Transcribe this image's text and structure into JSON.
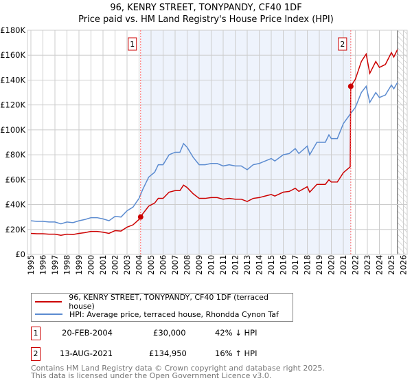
{
  "title": "96, KENRY STREET, TONYPANDY, CF40 1DF",
  "subtitle": "Price paid vs. HM Land Registry's House Price Index (HPI)",
  "chart_data": {
    "type": "line",
    "ylim": [
      0,
      180000
    ],
    "xlim": [
      1995,
      2026
    ],
    "yticks": [
      0,
      20000,
      40000,
      60000,
      80000,
      100000,
      120000,
      140000,
      160000,
      180000
    ],
    "ytick_labels": [
      "£0",
      "£20K",
      "£40K",
      "£60K",
      "£80K",
      "£100K",
      "£120K",
      "£140K",
      "£160K",
      "£180K"
    ],
    "xticks": [
      1995,
      1996,
      1997,
      1998,
      1999,
      2000,
      2001,
      2002,
      2003,
      2004,
      2005,
      2006,
      2007,
      2008,
      2009,
      2010,
      2011,
      2012,
      2013,
      2014,
      2015,
      2016,
      2017,
      2018,
      2019,
      2020,
      2021,
      2022,
      2023,
      2024,
      2025,
      2026
    ],
    "grid": true,
    "colors": {
      "property": "#cc0000",
      "hpi": "#5b8bd0",
      "shade": "#eef3fc"
    },
    "hpi_series": {
      "name": "HPI: Average price, terraced house, Rhondda Cynon Taf",
      "x": [
        1995,
        1995.5,
        1996,
        1996.5,
        1997,
        1997.5,
        1998,
        1998.5,
        1999,
        1999.5,
        2000,
        2000.5,
        2001,
        2001.5,
        2002,
        2002.5,
        2003,
        2003.5,
        2004,
        2004.3,
        2004.8,
        2005.3,
        2005.6,
        2006,
        2006.5,
        2007,
        2007.4,
        2007.7,
        2008,
        2008.5,
        2009,
        2009.5,
        2010,
        2010.5,
        2011,
        2011.5,
        2012,
        2012.5,
        2013,
        2013.5,
        2014,
        2014.5,
        2015,
        2015.3,
        2016,
        2016.5,
        2017,
        2017.3,
        2018,
        2018.2,
        2018.8,
        2019.5,
        2019.8,
        2020,
        2020.5,
        2021,
        2021.6,
        2022,
        2022.5,
        2022.9,
        2023.2,
        2023.7,
        2024,
        2024.5,
        2025,
        2025.2,
        2025.5
      ],
      "y": [
        27000,
        26500,
        26500,
        26000,
        26000,
        24500,
        26000,
        25500,
        27000,
        28000,
        29500,
        29500,
        28500,
        27000,
        30500,
        30000,
        35000,
        38000,
        45000,
        52000,
        62000,
        66000,
        72000,
        72000,
        80000,
        82000,
        82000,
        89000,
        86000,
        78000,
        72000,
        72000,
        73000,
        73000,
        71000,
        72000,
        71000,
        71000,
        68000,
        72000,
        73000,
        75000,
        77000,
        75000,
        80000,
        81000,
        85000,
        81000,
        87000,
        80000,
        90000,
        90000,
        96000,
        93000,
        93000,
        105000,
        113000,
        118000,
        130000,
        135000,
        122000,
        130000,
        126000,
        128000,
        136000,
        133000,
        138000
      ]
    },
    "property_series": {
      "name": "96, KENRY STREET, TONYPANDY, CF40 1DF (terraced house)"
    },
    "sales": [
      {
        "id": "1",
        "x": 2004.13,
        "price": 30000
      },
      {
        "id": "2",
        "x": 2021.62,
        "price": 134950
      }
    ]
  },
  "legend": {
    "property": "96, KENRY STREET, TONYPANDY, CF40 1DF (terraced house)",
    "hpi": "HPI: Average price, terraced house, Rhondda Cynon Taf"
  },
  "sales": [
    {
      "id": "1",
      "date": "20-FEB-2004",
      "price": "£30,000",
      "hpi": "42% ↓ HPI"
    },
    {
      "id": "2",
      "date": "13-AUG-2021",
      "price": "£134,950",
      "hpi": "16% ↑ HPI"
    }
  ],
  "footer": {
    "line1": "Contains HM Land Registry data © Crown copyright and database right 2025.",
    "line2": "This data is licensed under the Open Government Licence v3.0."
  }
}
